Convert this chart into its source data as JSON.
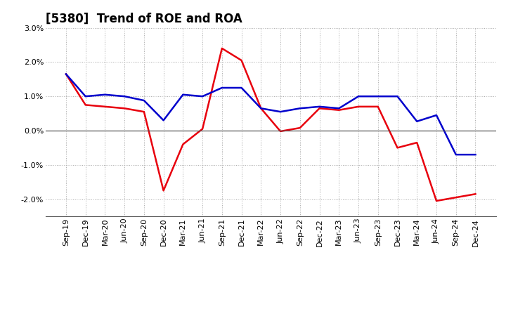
{
  "title": "[5380]  Trend of ROE and ROA",
  "labels": [
    "Sep-19",
    "Dec-19",
    "Mar-20",
    "Jun-20",
    "Sep-20",
    "Dec-20",
    "Mar-21",
    "Jun-21",
    "Sep-21",
    "Dec-21",
    "Mar-22",
    "Jun-22",
    "Sep-22",
    "Dec-22",
    "Mar-23",
    "Jun-23",
    "Sep-23",
    "Dec-23",
    "Mar-24",
    "Jun-24",
    "Sep-24",
    "Dec-24"
  ],
  "ROE": [
    1.65,
    0.75,
    0.7,
    0.65,
    0.55,
    -1.75,
    -0.4,
    0.05,
    2.4,
    2.05,
    0.65,
    -0.02,
    0.08,
    0.65,
    0.6,
    0.7,
    0.7,
    -0.5,
    -0.35,
    -2.05,
    -1.95,
    -1.85
  ],
  "ROA": [
    1.65,
    1.0,
    1.05,
    1.0,
    0.88,
    0.3,
    1.05,
    1.0,
    1.25,
    1.25,
    0.65,
    0.55,
    0.65,
    0.7,
    0.65,
    1.0,
    1.0,
    1.0,
    0.27,
    0.45,
    -0.7,
    -0.7
  ],
  "ROE_color": "#e8000d",
  "ROA_color": "#0000cc",
  "ylim": [
    -2.5,
    3.0
  ],
  "yticks": [
    -2.0,
    -1.0,
    0.0,
    1.0,
    2.0,
    3.0
  ],
  "background_color": "#ffffff",
  "grid_color": "#aaaaaa",
  "title_fontsize": 12,
  "legend_fontsize": 10,
  "axis_fontsize": 8,
  "linewidth": 1.8
}
